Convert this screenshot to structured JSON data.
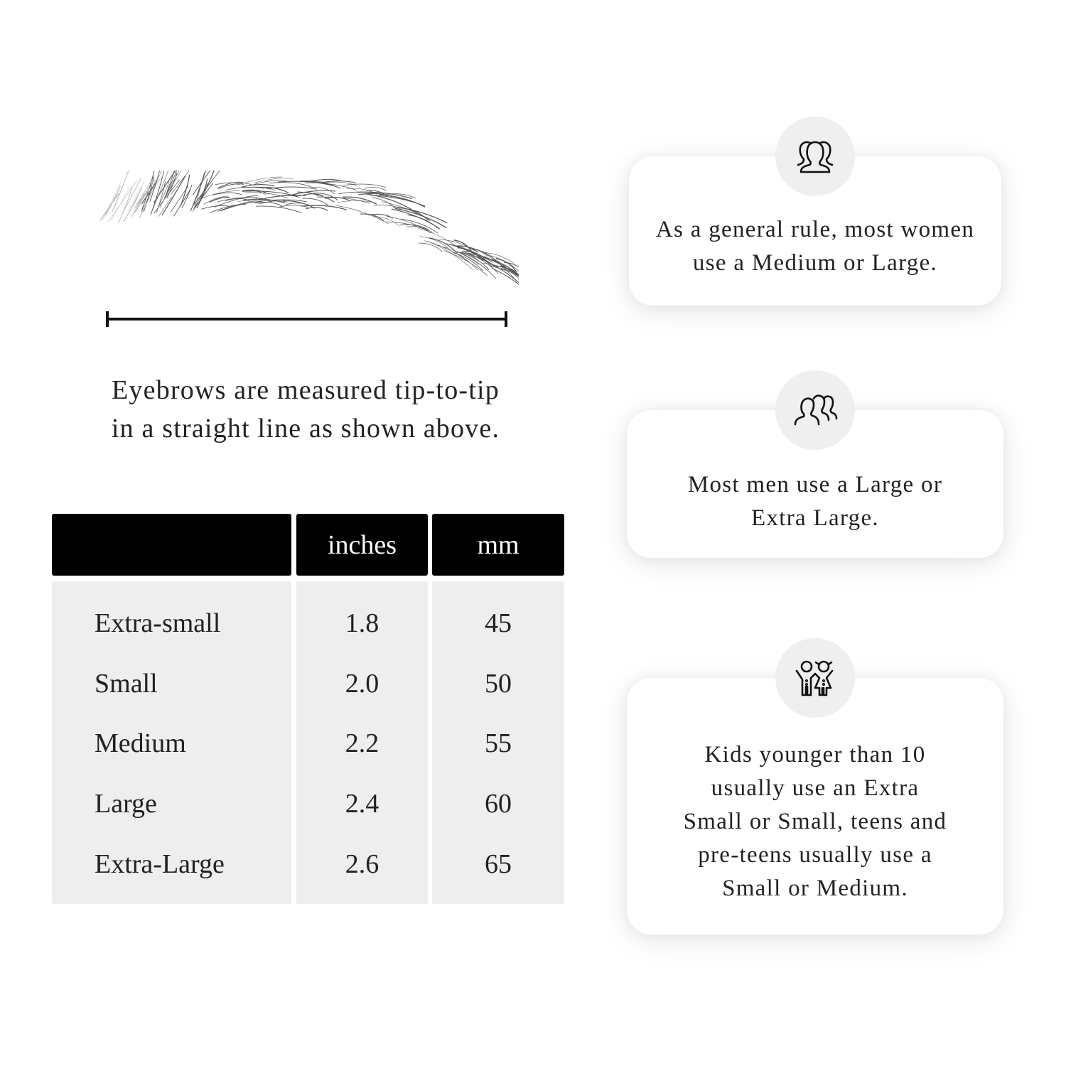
{
  "measure": {
    "caption_line1": "Eyebrows are measured tip-to-tip",
    "caption_line2": "in a straight line as shown above."
  },
  "table": {
    "headers": [
      "",
      "inches",
      "mm"
    ],
    "rows": [
      {
        "size": "Extra-small",
        "inches": "1.8",
        "mm": "45"
      },
      {
        "size": "Small",
        "inches": "2.0",
        "mm": "50"
      },
      {
        "size": "Medium",
        "inches": "2.2",
        "mm": "55"
      },
      {
        "size": "Large",
        "inches": "2.4",
        "mm": "60"
      },
      {
        "size": "Extra-Large",
        "inches": "2.6",
        "mm": "65"
      }
    ]
  },
  "cards": [
    {
      "icon": "women-group-icon",
      "lines": [
        "As a general rule, most women",
        "use a Medium or Large."
      ]
    },
    {
      "icon": "men-group-icon",
      "lines": [
        "Most men use a Large or",
        "Extra Large."
      ]
    },
    {
      "icon": "kids-icon",
      "lines": [
        "Kids younger than 10",
        "usually use an Extra",
        "Small or Small, teens and",
        "pre-teens usually use a",
        "Small or Medium."
      ]
    }
  ]
}
